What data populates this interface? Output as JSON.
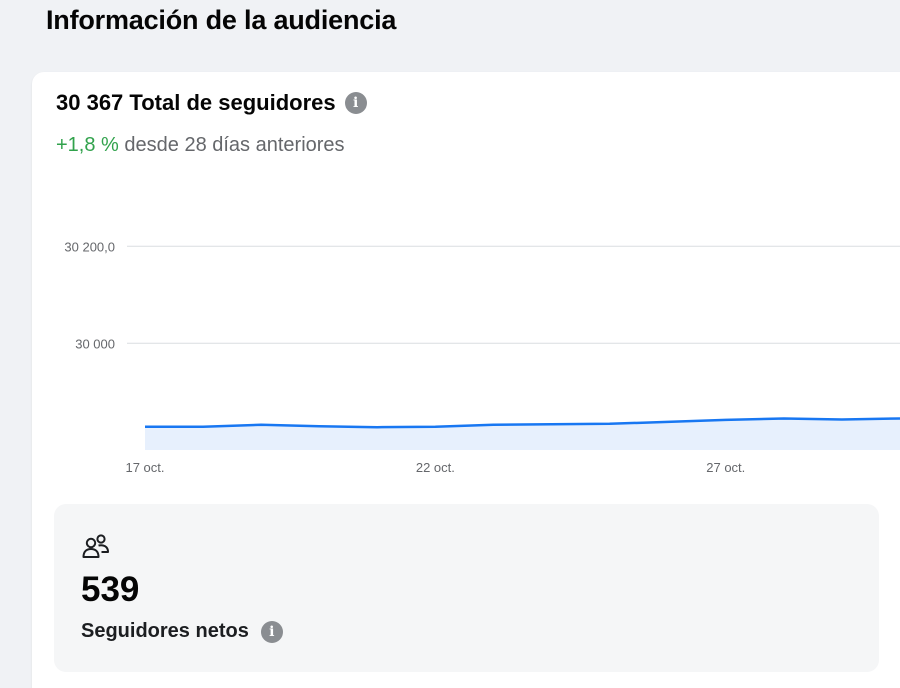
{
  "section": {
    "title": "Información de la audiencia"
  },
  "card": {
    "total_value": "30 367",
    "total_label": "Total de seguidores",
    "info_icon": "info-icon",
    "delta": "+1,8 %",
    "delta_text": "desde 28 días anteriores",
    "colors": {
      "positive": "#31a24c",
      "line": "#1877f2",
      "area": "#e7f0fd",
      "grid": "#dadde1"
    }
  },
  "chart_data": {
    "type": "area",
    "yticks": [
      "30 200,0",
      "30 000"
    ],
    "ytick_values": [
      30200,
      30000
    ],
    "xticks": [
      "17 oct.",
      "22 oct.",
      "27 oct."
    ],
    "x": [
      "17 oct.",
      "18 oct.",
      "19 oct.",
      "20 oct.",
      "21 oct.",
      "22 oct.",
      "23 oct.",
      "24 oct.",
      "25 oct.",
      "26 oct.",
      "27 oct.",
      "28 oct.",
      "29 oct.",
      "30 oct."
    ],
    "values": [
      29828,
      29828,
      29832,
      29829,
      29827,
      29828,
      29832,
      29833,
      29834,
      29838,
      29842,
      29845,
      29843,
      29845
    ],
    "ylim": [
      29780,
      30250
    ],
    "grid": true,
    "legend": "none"
  },
  "stat": {
    "icon": "people-icon",
    "value": "539",
    "label": "Seguidores netos",
    "info_icon": "info-icon"
  }
}
